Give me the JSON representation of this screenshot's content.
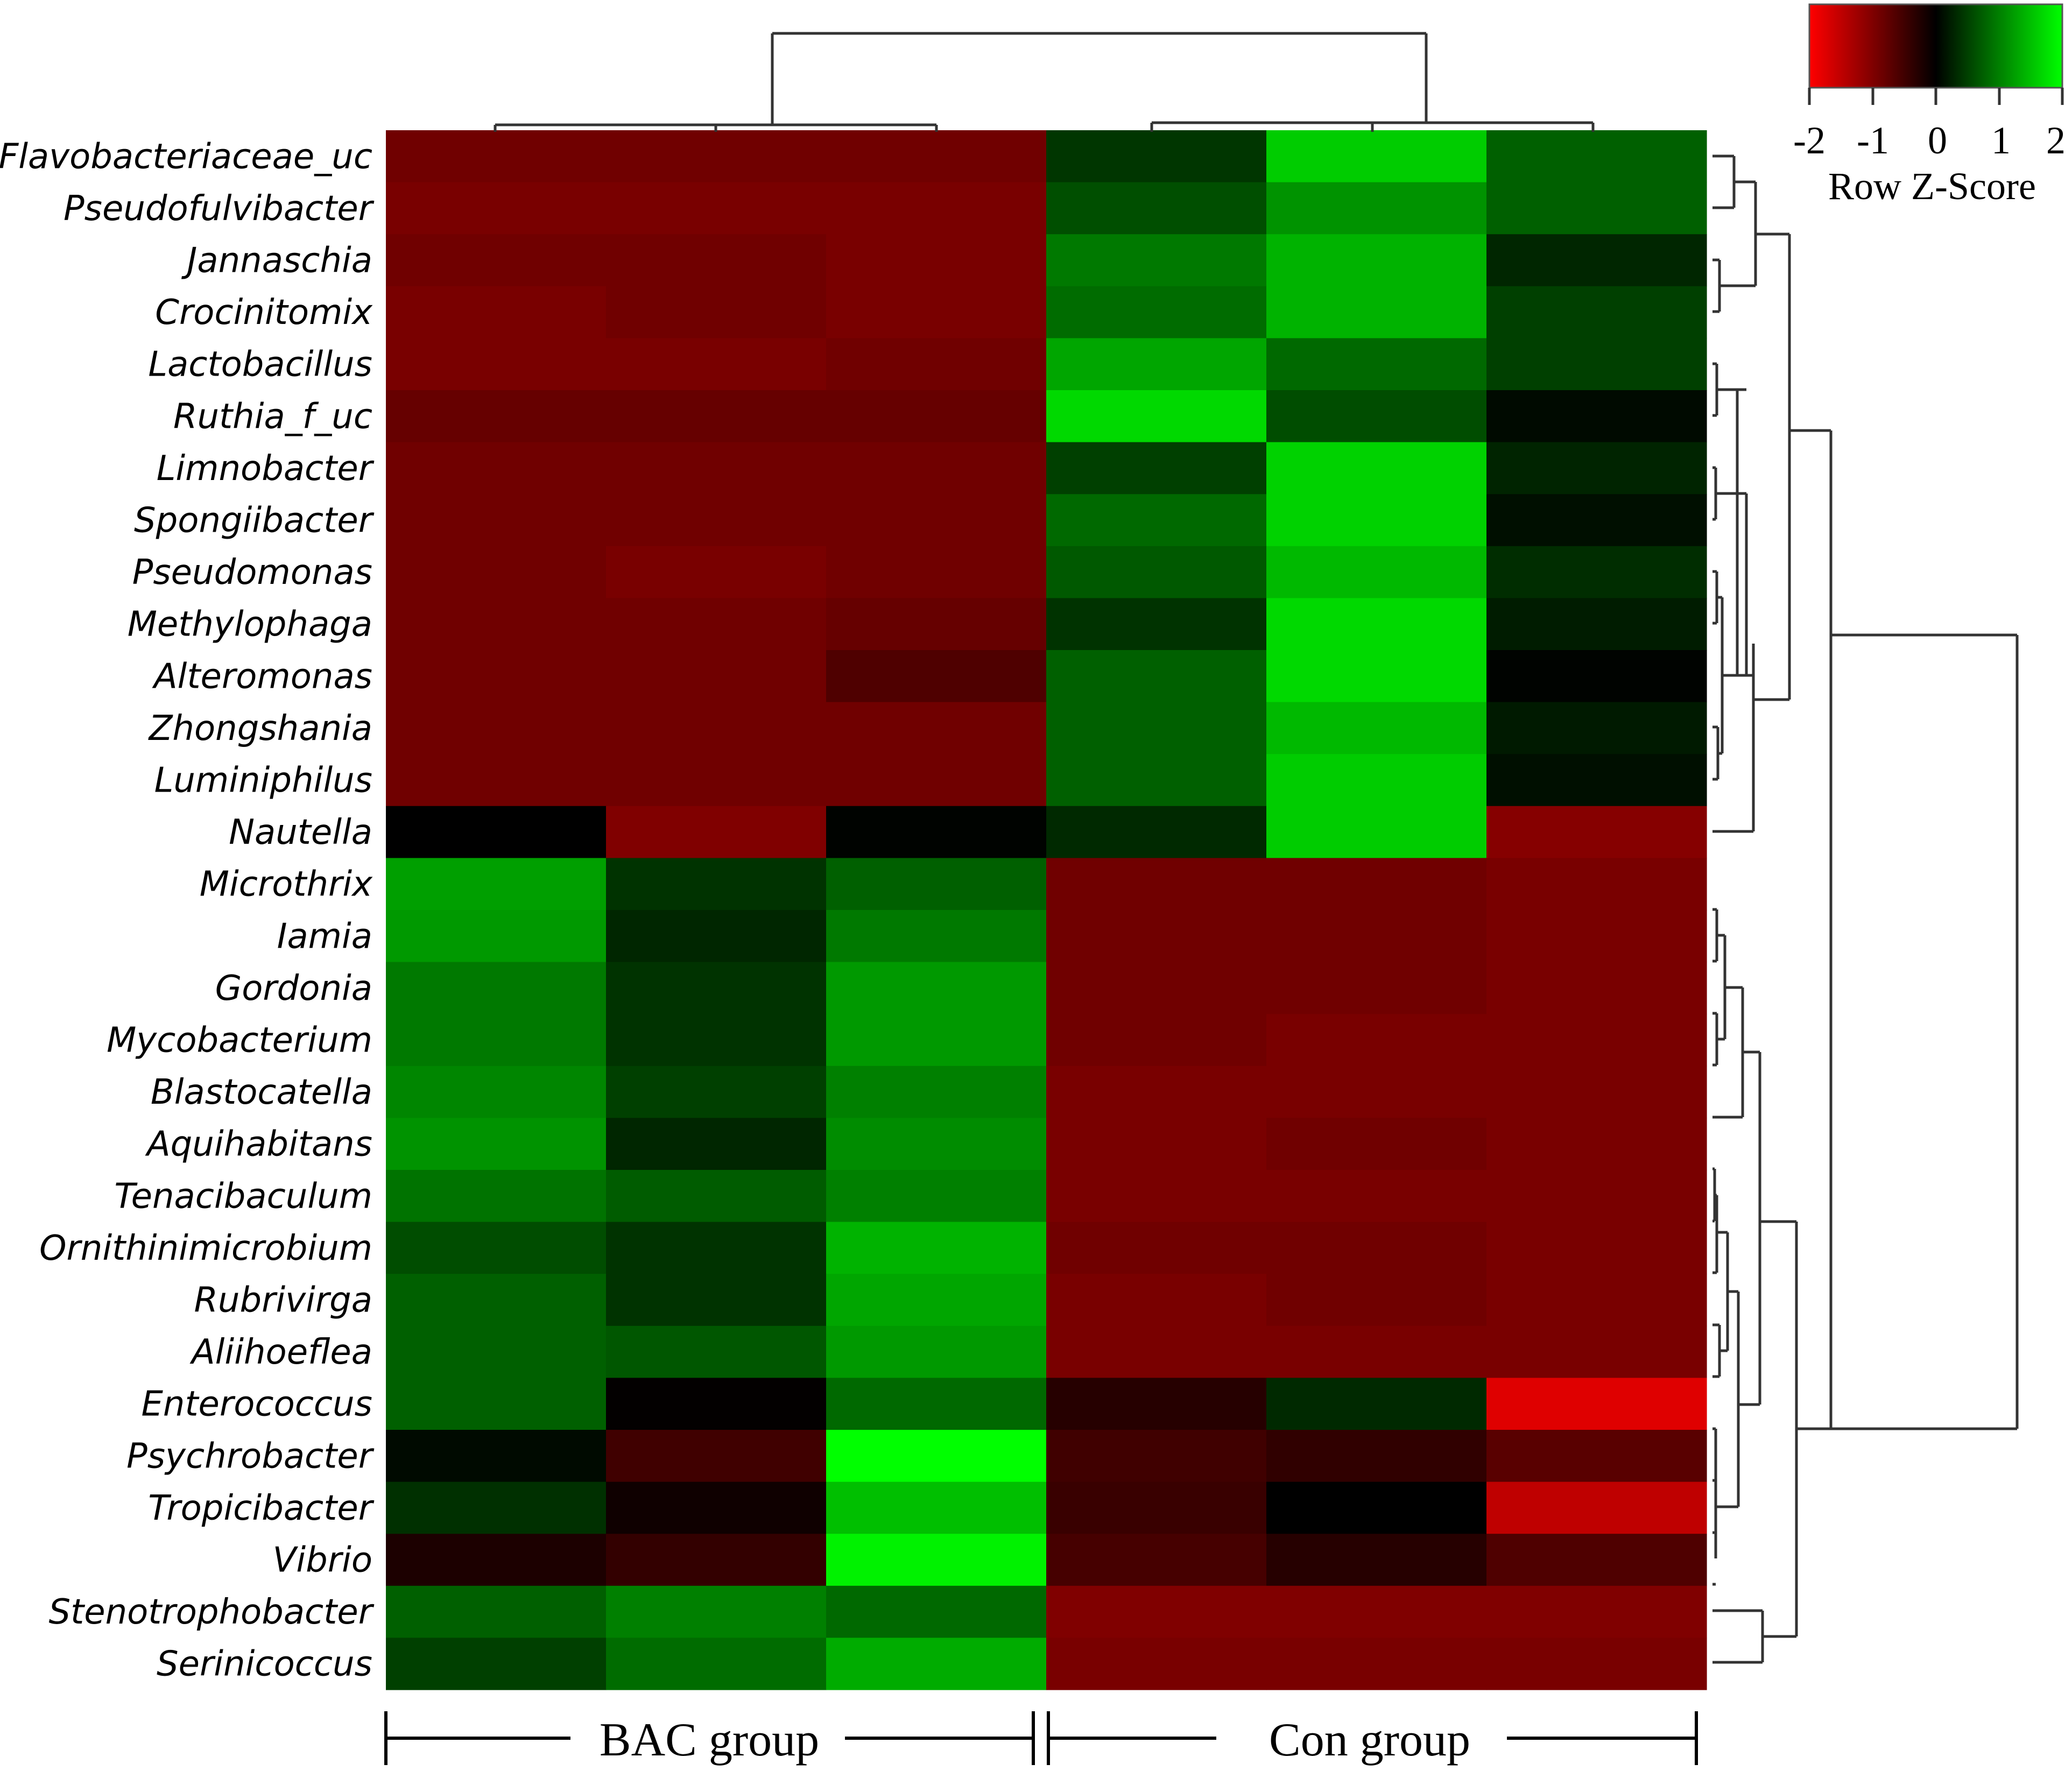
{
  "chart_data": {
    "type": "heatmap",
    "title": "",
    "xlabel": "",
    "ylabel": "",
    "rows": [
      "Flavobacteriaceae_uc",
      "Pseudofulvibacter",
      "Jannaschia",
      "Crocinitomix",
      "Lactobacillus",
      "Ruthia_f_uc",
      "Limnobacter",
      "Spongiibacter",
      "Pseudomonas",
      "Methylophaga",
      "Alteromonas",
      "Zhongshania",
      "Luminiphilus",
      "Nautella",
      "Microthrix",
      "Iamia",
      "Gordonia",
      "Mycobacterium",
      "Blastocatella",
      "Aquihabitans",
      "Tenacibaculum",
      "Ornithinimicrobium",
      "Rubrivirga",
      "Aliihoeflea",
      "Enterococcus",
      "Psychrobacter",
      "Tropicibacter",
      "Vibrio",
      "Stenotrophobacter",
      "Serinicoccus"
    ],
    "column_groups": [
      {
        "label": "BAC group",
        "columns": 3
      },
      {
        "label": "Con group",
        "columns": 3
      }
    ],
    "values": [
      [
        -0.88,
        -0.88,
        -0.88,
        0.42,
        1.6,
        0.75
      ],
      [
        -0.95,
        -0.95,
        -0.95,
        0.62,
        1.15,
        0.75
      ],
      [
        -0.88,
        -0.88,
        -0.95,
        0.95,
        1.4,
        0.3
      ],
      [
        -0.95,
        -0.88,
        -0.95,
        0.85,
        1.4,
        0.5
      ],
      [
        -0.95,
        -0.95,
        -0.88,
        1.3,
        0.82,
        0.5
      ],
      [
        -0.8,
        -0.8,
        -0.8,
        1.7,
        0.6,
        0.08
      ],
      [
        -0.88,
        -0.88,
        -0.88,
        0.5,
        1.65,
        0.28
      ],
      [
        -0.88,
        -0.88,
        -0.88,
        0.82,
        1.65,
        0.12
      ],
      [
        -0.88,
        -0.95,
        -0.88,
        0.7,
        1.45,
        0.35
      ],
      [
        -0.88,
        -0.88,
        -0.8,
        0.4,
        1.7,
        0.22
      ],
      [
        -0.88,
        -0.88,
        -0.62,
        0.75,
        1.7,
        0.02
      ],
      [
        -0.88,
        -0.88,
        -0.88,
        0.75,
        1.45,
        0.2
      ],
      [
        -0.88,
        -0.88,
        -0.88,
        0.75,
        1.6,
        0.12
      ],
      [
        0.0,
        -1.0,
        0.02,
        0.32,
        1.6,
        -1.05
      ],
      [
        1.25,
        0.4,
        0.75,
        -0.88,
        -0.88,
        -0.95
      ],
      [
        1.2,
        0.3,
        0.95,
        -0.88,
        -0.88,
        -0.95
      ],
      [
        0.95,
        0.4,
        1.2,
        -0.88,
        -0.88,
        -0.95
      ],
      [
        0.95,
        0.4,
        1.2,
        -0.88,
        -0.95,
        -0.95
      ],
      [
        1.05,
        0.5,
        1.0,
        -0.95,
        -0.95,
        -0.95
      ],
      [
        1.15,
        0.3,
        1.1,
        -0.95,
        -0.88,
        -0.95
      ],
      [
        0.9,
        0.72,
        1.0,
        -0.95,
        -0.95,
        -0.95
      ],
      [
        0.6,
        0.4,
        1.4,
        -0.88,
        -0.88,
        -0.95
      ],
      [
        0.75,
        0.4,
        1.3,
        -0.95,
        -0.88,
        -0.95
      ],
      [
        0.75,
        0.68,
        1.2,
        -0.95,
        -0.95,
        -0.95
      ],
      [
        0.75,
        -0.02,
        0.82,
        -0.3,
        0.32,
        -1.75
      ],
      [
        0.08,
        -0.5,
        2.0,
        -0.5,
        -0.38,
        -0.7
      ],
      [
        0.38,
        -0.12,
        1.5,
        -0.45,
        0.0,
        -1.5
      ],
      [
        -0.22,
        -0.4,
        1.9,
        -0.55,
        -0.3,
        -0.62
      ],
      [
        0.75,
        1.0,
        0.82,
        -1.0,
        -1.0,
        -1.0
      ],
      [
        0.5,
        0.85,
        1.35,
        -0.95,
        -0.95,
        -0.95
      ]
    ],
    "color_key": {
      "title": "Row Z-Score",
      "ticks": [
        "-2",
        "-1",
        "0",
        "1",
        "2"
      ],
      "range": [
        -2,
        2
      ],
      "colors": {
        "low": "#ff0000",
        "mid": "#000000",
        "high": "#00ff00"
      }
    },
    "legend_position": "top-right",
    "grid": false
  }
}
